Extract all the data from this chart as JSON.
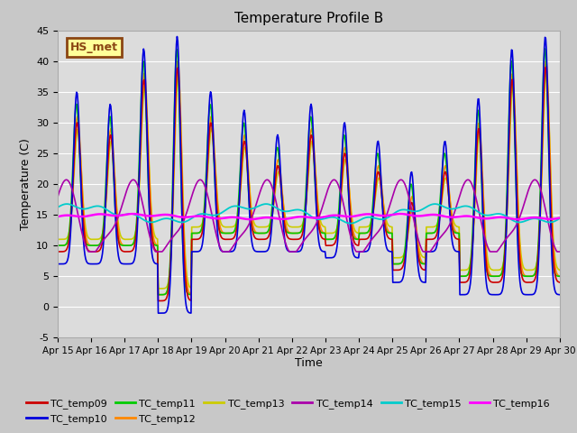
{
  "title": "Temperature Profile B",
  "xlabel": "Time",
  "ylabel": "Temperature (C)",
  "ylim": [
    -5,
    45
  ],
  "annotation_label": "HS_met",
  "annotation_bg": "#ffff99",
  "annotation_border": "#8b4513",
  "series_colors": {
    "TC_temp09": "#cc0000",
    "TC_temp10": "#0000dd",
    "TC_temp11": "#00cc00",
    "TC_temp12": "#ff8800",
    "TC_temp13": "#cccc00",
    "TC_temp14": "#aa00aa",
    "TC_temp15": "#00cccc",
    "TC_temp16": "#ff00ff"
  },
  "tick_dates": [
    "Apr 15",
    "Apr 16",
    "Apr 17",
    "Apr 18",
    "Apr 19",
    "Apr 20",
    "Apr 21",
    "Apr 22",
    "Apr 23",
    "Apr 24",
    "Apr 25",
    "Apr 26",
    "Apr 27",
    "Apr 28",
    "Apr 29",
    "Apr 30"
  ],
  "yticks": [
    -5,
    0,
    5,
    10,
    15,
    20,
    25,
    30,
    35,
    40,
    45
  ]
}
